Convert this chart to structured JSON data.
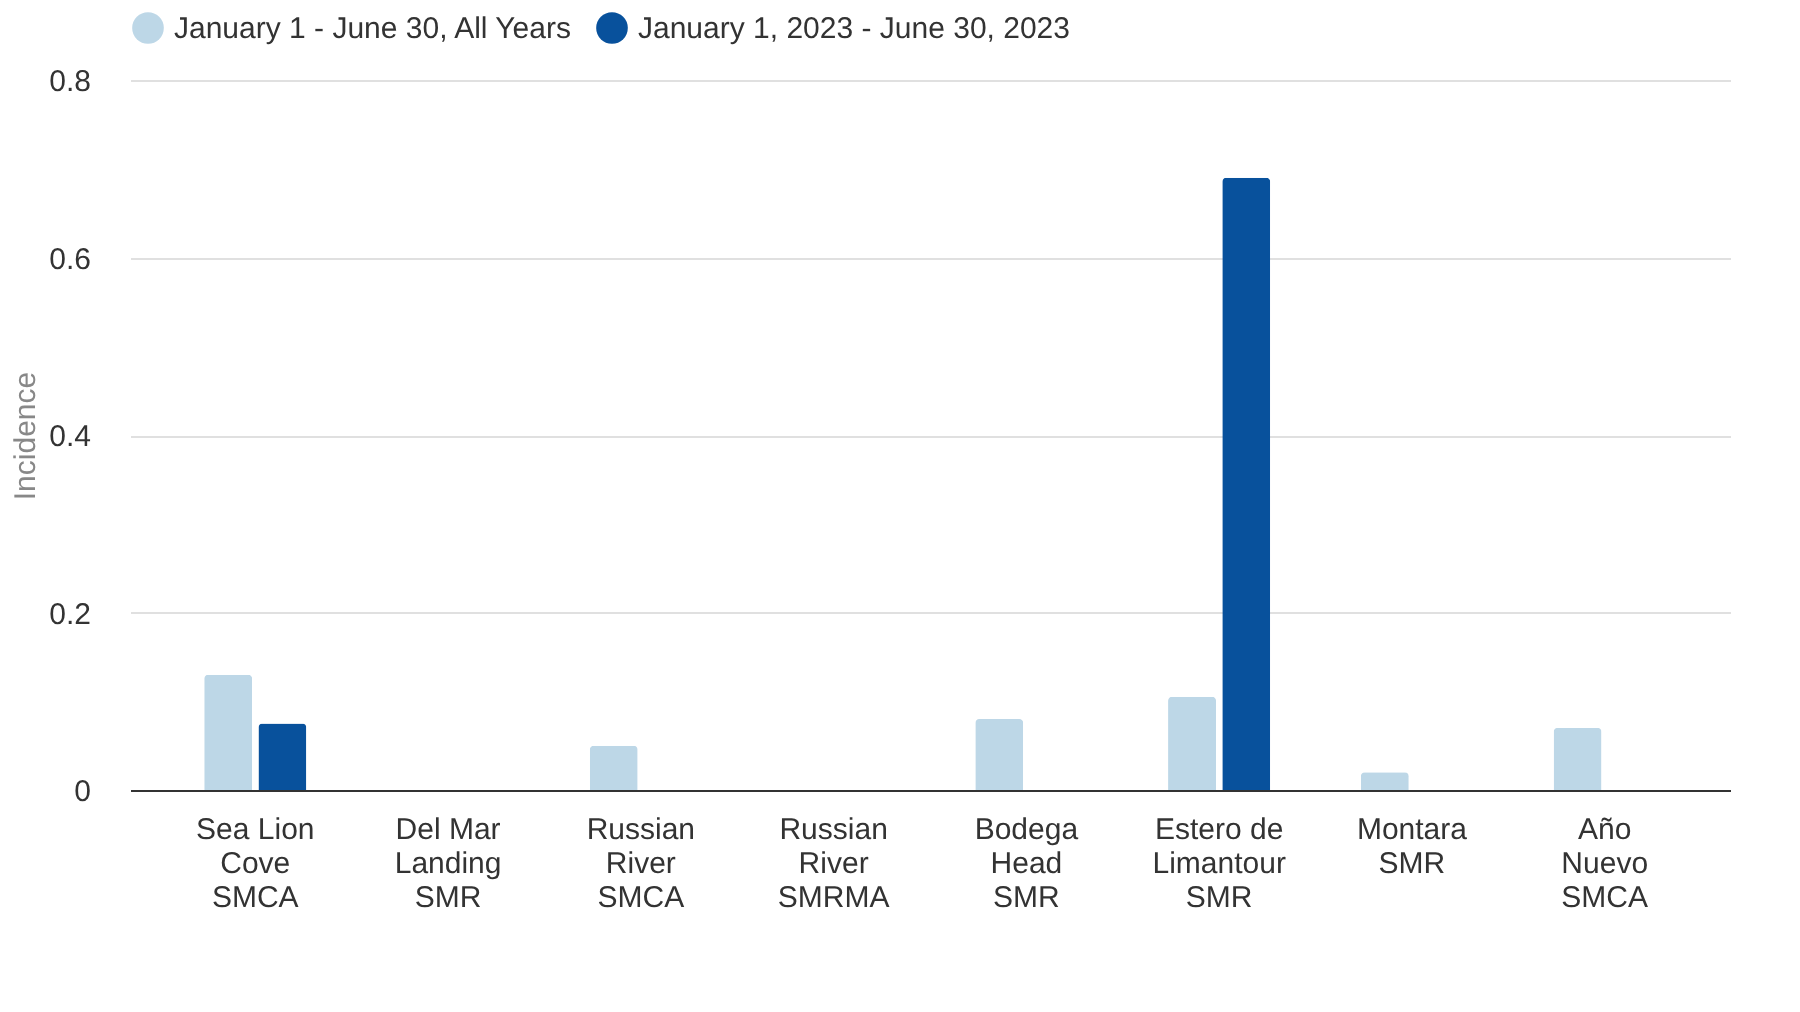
{
  "chart_data": {
    "type": "bar",
    "ylabel": "Incidence",
    "categories": [
      "Sea Lion\nCove\nSMCA",
      "Del Mar\nLanding\nSMR",
      "Russian\nRiver\nSMCA",
      "Russian\nRiver\nSMRMA",
      "Bodega\nHead\nSMR",
      "Estero de\nLimantour\nSMR",
      "Montara\nSMR",
      "Año\nNuevo\nSMCA"
    ],
    "series": [
      {
        "name": "January 1 - June 30, All Years",
        "color": "#bdd7e7",
        "values": [
          0.13,
          0,
          0.05,
          0,
          0.08,
          0.105,
          0.02,
          0.07
        ]
      },
      {
        "name": "January 1, 2023 - June 30, 2023",
        "color": "#08519c",
        "values": [
          0.075,
          0,
          0,
          0,
          0,
          0.69,
          0,
          0
        ]
      }
    ],
    "ylim": [
      0,
      0.8
    ],
    "yticks": [
      {
        "value": 0,
        "label": "0"
      },
      0.2,
      0.4,
      0.6,
      0.8
    ],
    "grid": "y",
    "legend": "top"
  }
}
